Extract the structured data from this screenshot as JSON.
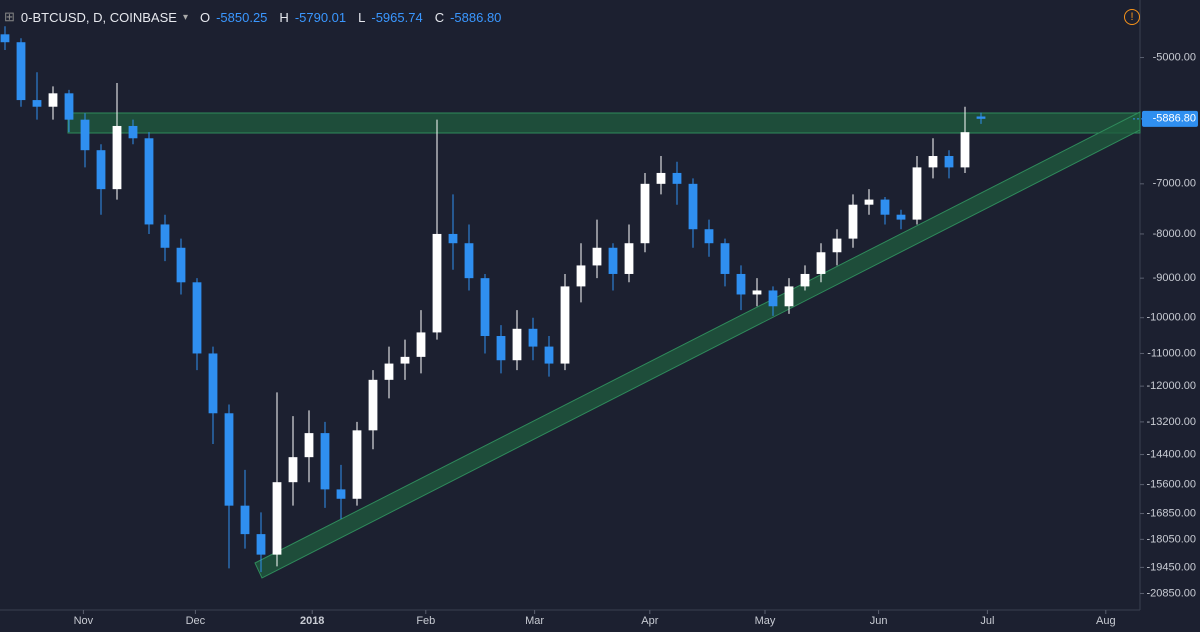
{
  "chart_data": {
    "type": "candlestick",
    "title": "0-BTCUSD, D, COINBASE",
    "header_fields": [
      "O",
      "H",
      "L",
      "C"
    ],
    "log_scale": true,
    "up_color": "#ffffff",
    "down_color": "#2f8ff0",
    "categories": [
      null,
      null,
      null,
      null,
      null,
      null,
      null,
      null,
      null,
      null,
      null,
      null,
      null,
      null,
      null,
      null,
      null,
      null,
      null,
      null,
      null,
      null,
      null,
      null,
      null,
      null,
      null,
      null,
      null,
      null,
      null,
      null,
      null,
      null,
      null,
      null,
      null,
      null,
      null,
      null,
      null,
      null,
      null,
      null,
      null,
      null,
      null,
      null,
      null,
      null,
      null,
      null,
      null,
      null,
      null,
      null,
      null,
      null,
      null,
      null,
      null,
      null
    ],
    "open": [
      -4700,
      -4800,
      -5600,
      -5700,
      -5500,
      -5900,
      -6400,
      -7100,
      -6000,
      -6200,
      -7800,
      -8300,
      -9100,
      -11000,
      -12900,
      -16500,
      -17800,
      -18800,
      -15500,
      -14500,
      -13600,
      -15800,
      -16200,
      -13500,
      -11800,
      -11300,
      -11100,
      -10400,
      -8000,
      -8200,
      -9000,
      -10500,
      -11200,
      -10300,
      -10800,
      -11300,
      -9200,
      -8700,
      -8300,
      -8900,
      -8200,
      -7000,
      -6800,
      -7000,
      -7900,
      -8200,
      -8900,
      -9400,
      -9300,
      -9700,
      -9200,
      -8900,
      -8400,
      -8100,
      -7400,
      -7300,
      -7600,
      -7700,
      -6700,
      -6500,
      -6700,
      -5850.25
    ],
    "high": [
      -4600,
      -4750,
      -5200,
      -5400,
      -5450,
      -5800,
      -6300,
      -5350,
      -5900,
      -6100,
      -7600,
      -8100,
      -9000,
      -10800,
      -12600,
      -15000,
      -16800,
      -12200,
      -13000,
      -12800,
      -13200,
      -14800,
      -13200,
      -11500,
      -10800,
      -10600,
      -9800,
      -5900,
      -7200,
      -7800,
      -8900,
      -10200,
      -9800,
      -10000,
      -10500,
      -8900,
      -8200,
      -7700,
      -8200,
      -7800,
      -6800,
      -6500,
      -6600,
      -6900,
      -7700,
      -8100,
      -8700,
      -9000,
      -9200,
      -9000,
      -8700,
      -8200,
      -7900,
      -7200,
      -7100,
      -7250,
      -7500,
      -6500,
      -6200,
      -6400,
      -5700,
      -5790.01
    ],
    "low": [
      -4900,
      -5700,
      -5900,
      -5900,
      -6100,
      -6700,
      -7600,
      -7300,
      -6300,
      -8000,
      -8600,
      -9400,
      -11500,
      -14000,
      -19500,
      -18500,
      -19700,
      -19400,
      -16500,
      -15500,
      -16600,
      -17100,
      -16500,
      -14200,
      -12400,
      -11800,
      -11600,
      -10600,
      -8800,
      -9300,
      -11000,
      -11600,
      -11500,
      -11200,
      -11700,
      -11500,
      -9600,
      -9000,
      -9300,
      -9100,
      -8400,
      -7200,
      -7400,
      -8300,
      -8500,
      -9200,
      -9800,
      -9700,
      -9950,
      -9900,
      -9300,
      -9100,
      -8700,
      -8300,
      -7600,
      -7800,
      -7900,
      -7800,
      -6900,
      -6900,
      -6800,
      -5965.74
    ],
    "close": [
      -4800,
      -5600,
      -5700,
      -5500,
      -5900,
      -6400,
      -7100,
      -6000,
      -6200,
      -7800,
      -8300,
      -9100,
      -11000,
      -12900,
      -16500,
      -17800,
      -18800,
      -15500,
      -14500,
      -13600,
      -15800,
      -16200,
      -13500,
      -11800,
      -11300,
      -11100,
      -10400,
      -8000,
      -8200,
      -9000,
      -10500,
      -11200,
      -10300,
      -10800,
      -11300,
      -9200,
      -8700,
      -8300,
      -8900,
      -8200,
      -7000,
      -6800,
      -7000,
      -7900,
      -8200,
      -8900,
      -9400,
      -9300,
      -9700,
      -9200,
      -8900,
      -8400,
      -8100,
      -7400,
      -7300,
      -7600,
      -7700,
      -6700,
      -6500,
      -6700,
      -6100,
      -5886.8
    ],
    "last_price": {
      "value": -5886.8,
      "label": "-5886.80"
    },
    "xlim": [
      -0.3125,
      70.5
    ],
    "xticks": [
      {
        "value": 4.9,
        "label": "Nov"
      },
      {
        "value": 11.9,
        "label": "Dec"
      },
      {
        "value": 19.2,
        "label": "2018"
      },
      {
        "value": 26.3,
        "label": "Feb"
      },
      {
        "value": 33.1,
        "label": "Mar"
      },
      {
        "value": 40.3,
        "label": "Apr"
      },
      {
        "value": 47.5,
        "label": "May"
      },
      {
        "value": 54.6,
        "label": "Jun"
      },
      {
        "value": 61.4,
        "label": "Jul"
      },
      {
        "value": 68.8,
        "label": "Aug"
      }
    ],
    "ylim": [
      -4500,
      -21500
    ],
    "yticks": [
      {
        "value": -5000,
        "label": "-5000.00"
      },
      {
        "value": -7000,
        "label": "-7000.00"
      },
      {
        "value": -8000,
        "label": "-8000.00"
      },
      {
        "value": -9000,
        "label": "-9000.00"
      },
      {
        "value": -10000,
        "label": "-10000.00"
      },
      {
        "value": -11000,
        "label": "-11000.00"
      },
      {
        "value": -12000,
        "label": "-12000.00"
      },
      {
        "value": -13200,
        "label": "-13200.00"
      },
      {
        "value": -14400,
        "label": "-14400.00"
      },
      {
        "value": -15600,
        "label": "-15600.00"
      },
      {
        "value": -16850,
        "label": "-16850.00"
      },
      {
        "value": -18050,
        "label": "-18050.00"
      },
      {
        "value": -19450,
        "label": "-19450.00"
      },
      {
        "value": -20850,
        "label": "-20850.00"
      }
    ]
  }
}
